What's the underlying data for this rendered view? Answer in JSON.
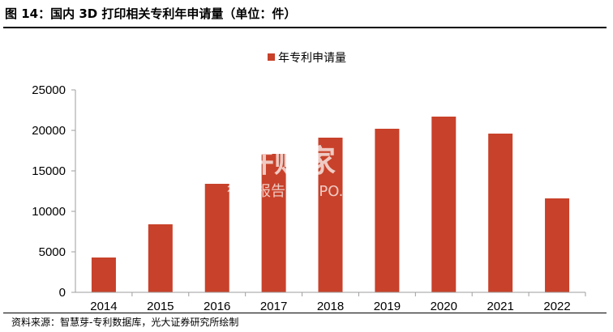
{
  "header": {
    "figure_title": "图 14：国内 3D 打印相关专利年申请量（单位：件）"
  },
  "footer": {
    "source": "资料来源：智慧芽-专利数据库，光大证券研究所绘制"
  },
  "watermark": {
    "main": "并购家",
    "sub": "行业报告 IPOIPO.CN"
  },
  "colors": {
    "bar": "#C8412A",
    "axis": "#9e9e9e"
  },
  "chart_data": {
    "type": "bar",
    "categories": [
      "2014",
      "2015",
      "2016",
      "2017",
      "2018",
      "2019",
      "2020",
      "2021",
      "2022"
    ],
    "series": [
      {
        "name": "年专利申请量",
        "values": [
          4300,
          8400,
          13400,
          17100,
          19100,
          20200,
          21700,
          19600,
          11600
        ]
      }
    ],
    "ylim": [
      0,
      25000
    ],
    "yticks": [
      0,
      5000,
      10000,
      15000,
      20000,
      25000
    ],
    "legend_position": "top-center",
    "grid": false
  }
}
